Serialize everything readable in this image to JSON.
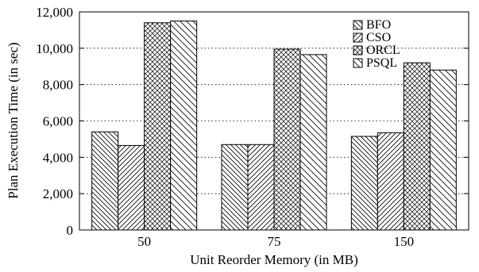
{
  "chart_data": {
    "type": "bar",
    "xlabel": "Unit Reorder Memory (in MB)",
    "ylabel": "Plan Execution Time (in sec)",
    "categories": [
      "50",
      "75",
      "150"
    ],
    "ylim": [
      0,
      12000
    ],
    "yticks": [
      0,
      2000,
      4000,
      6000,
      8000,
      10000,
      12000
    ],
    "ytick_labels": [
      "0",
      "2,000",
      "4,000",
      "6,000",
      "8,000",
      "10,000",
      "12,000"
    ],
    "grid": "horizontal dotted",
    "legend_position": "top-right",
    "series": [
      {
        "name": "BFO",
        "pattern": "diag-back",
        "values": [
          5400,
          4700,
          5150
        ]
      },
      {
        "name": "CSO",
        "pattern": "diag-fwd",
        "values": [
          4650,
          4700,
          5350
        ]
      },
      {
        "name": "ORCL",
        "pattern": "crosshatch",
        "values": [
          11400,
          9950,
          9200
        ]
      },
      {
        "name": "PSQL",
        "pattern": "diag-back-wide",
        "values": [
          11500,
          9650,
          8800
        ]
      }
    ]
  }
}
